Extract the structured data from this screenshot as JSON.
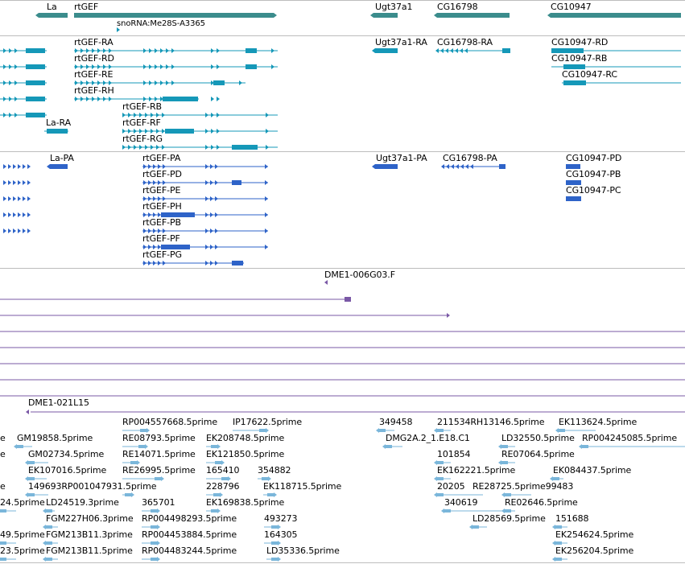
{
  "colors": {
    "gene": "#3b8c8c",
    "transcript": "#1598b8",
    "protein": "#2e63c8",
    "clone": "#7a58a6",
    "est": "#7ab6da",
    "divider": "#bdbdbd"
  },
  "genes": [
    {
      "label": "La"
    },
    {
      "label": "rtGEF"
    },
    {
      "label": "snoRNA:Me28S-A3365"
    },
    {
      "label": "Ugt37a1"
    },
    {
      "label": "CG16798"
    },
    {
      "label": "CG10947"
    }
  ],
  "transcripts": [
    {
      "label": "rtGEF-RA"
    },
    {
      "label": "rtGEF-RD"
    },
    {
      "label": "rtGEF-RE"
    },
    {
      "label": "rtGEF-RH"
    },
    {
      "label": "rtGEF-RB"
    },
    {
      "label": "rtGEF-RF"
    },
    {
      "label": "rtGEF-RG"
    },
    {
      "label": "La-RA"
    },
    {
      "label": "Ugt37a1-RA"
    },
    {
      "label": "CG16798-RA"
    },
    {
      "label": "CG10947-RD"
    },
    {
      "label": "CG10947-RB"
    },
    {
      "label": "CG10947-RC"
    }
  ],
  "proteins": [
    {
      "label": "La-PA"
    },
    {
      "label": "rtGEF-PA"
    },
    {
      "label": "rtGEF-PD"
    },
    {
      "label": "rtGEF-PE"
    },
    {
      "label": "rtGEF-PH"
    },
    {
      "label": "rtGEF-PB"
    },
    {
      "label": "rtGEF-PF"
    },
    {
      "label": "rtGEF-PG"
    },
    {
      "label": "Ugt37a1-PA"
    },
    {
      "label": "CG16798-PA"
    },
    {
      "label": "CG10947-PD"
    },
    {
      "label": "CG10947-PB"
    },
    {
      "label": "CG10947-PC"
    }
  ],
  "clones": [
    {
      "label": "DME1-006G03.F"
    },
    {
      "label": "DME1-021L15"
    }
  ],
  "ests": [
    {
      "label": "RP004557668.5prime"
    },
    {
      "label": "IP17622.5prime"
    },
    {
      "label": "349458"
    },
    {
      "label": "211534RH13146.5prime"
    },
    {
      "label": "EK113624.5prime"
    },
    {
      "label": "e"
    },
    {
      "label": "GM19858.5prime"
    },
    {
      "label": "RE08793.5prime"
    },
    {
      "label": "EK208748.5prime"
    },
    {
      "label": "DMG2A.2_1.E18.C1"
    },
    {
      "label": "LD32550.5prime"
    },
    {
      "label": "RP004245085.5prime"
    },
    {
      "label": "e"
    },
    {
      "label": "GM02734.5prime"
    },
    {
      "label": "RE14071.5prime"
    },
    {
      "label": "EK121850.5prime"
    },
    {
      "label": "101854"
    },
    {
      "label": "RE07064.5prime"
    },
    {
      "label": "EK107016.5prime"
    },
    {
      "label": "RE26995.5prime"
    },
    {
      "label": "165410"
    },
    {
      "label": "354882"
    },
    {
      "label": "EK162221.5prime"
    },
    {
      "label": "EK084437.5prime"
    },
    {
      "label": "e"
    },
    {
      "label": "149693RP001047931.5prime"
    },
    {
      "label": "228796"
    },
    {
      "label": "EK118715.5prime"
    },
    {
      "label": "20205"
    },
    {
      "label": "RE28725.5prime99483"
    },
    {
      "label": "24.5prime"
    },
    {
      "label": "LD24519.3prime"
    },
    {
      "label": "365701"
    },
    {
      "label": "EK169838.5prime"
    },
    {
      "label": "340619"
    },
    {
      "label": "RE02646.5prime"
    },
    {
      "label": "FGM227H06.3prime"
    },
    {
      "label": "RP004498293.5prime"
    },
    {
      "label": "493273"
    },
    {
      "label": "LD28569.5prime"
    },
    {
      "label": "151688"
    },
    {
      "label": "49.5prime"
    },
    {
      "label": "FGM213B11.3prime"
    },
    {
      "label": "RP004453884.5prime"
    },
    {
      "label": "164305"
    },
    {
      "label": "EK254624.5prime"
    },
    {
      "label": "23.5prime"
    },
    {
      "label": "FGM213B11.5prime"
    },
    {
      "label": "RP004483244.5prime"
    },
    {
      "label": "LD35336.5prime"
    },
    {
      "label": "EK256204.5prime"
    }
  ]
}
